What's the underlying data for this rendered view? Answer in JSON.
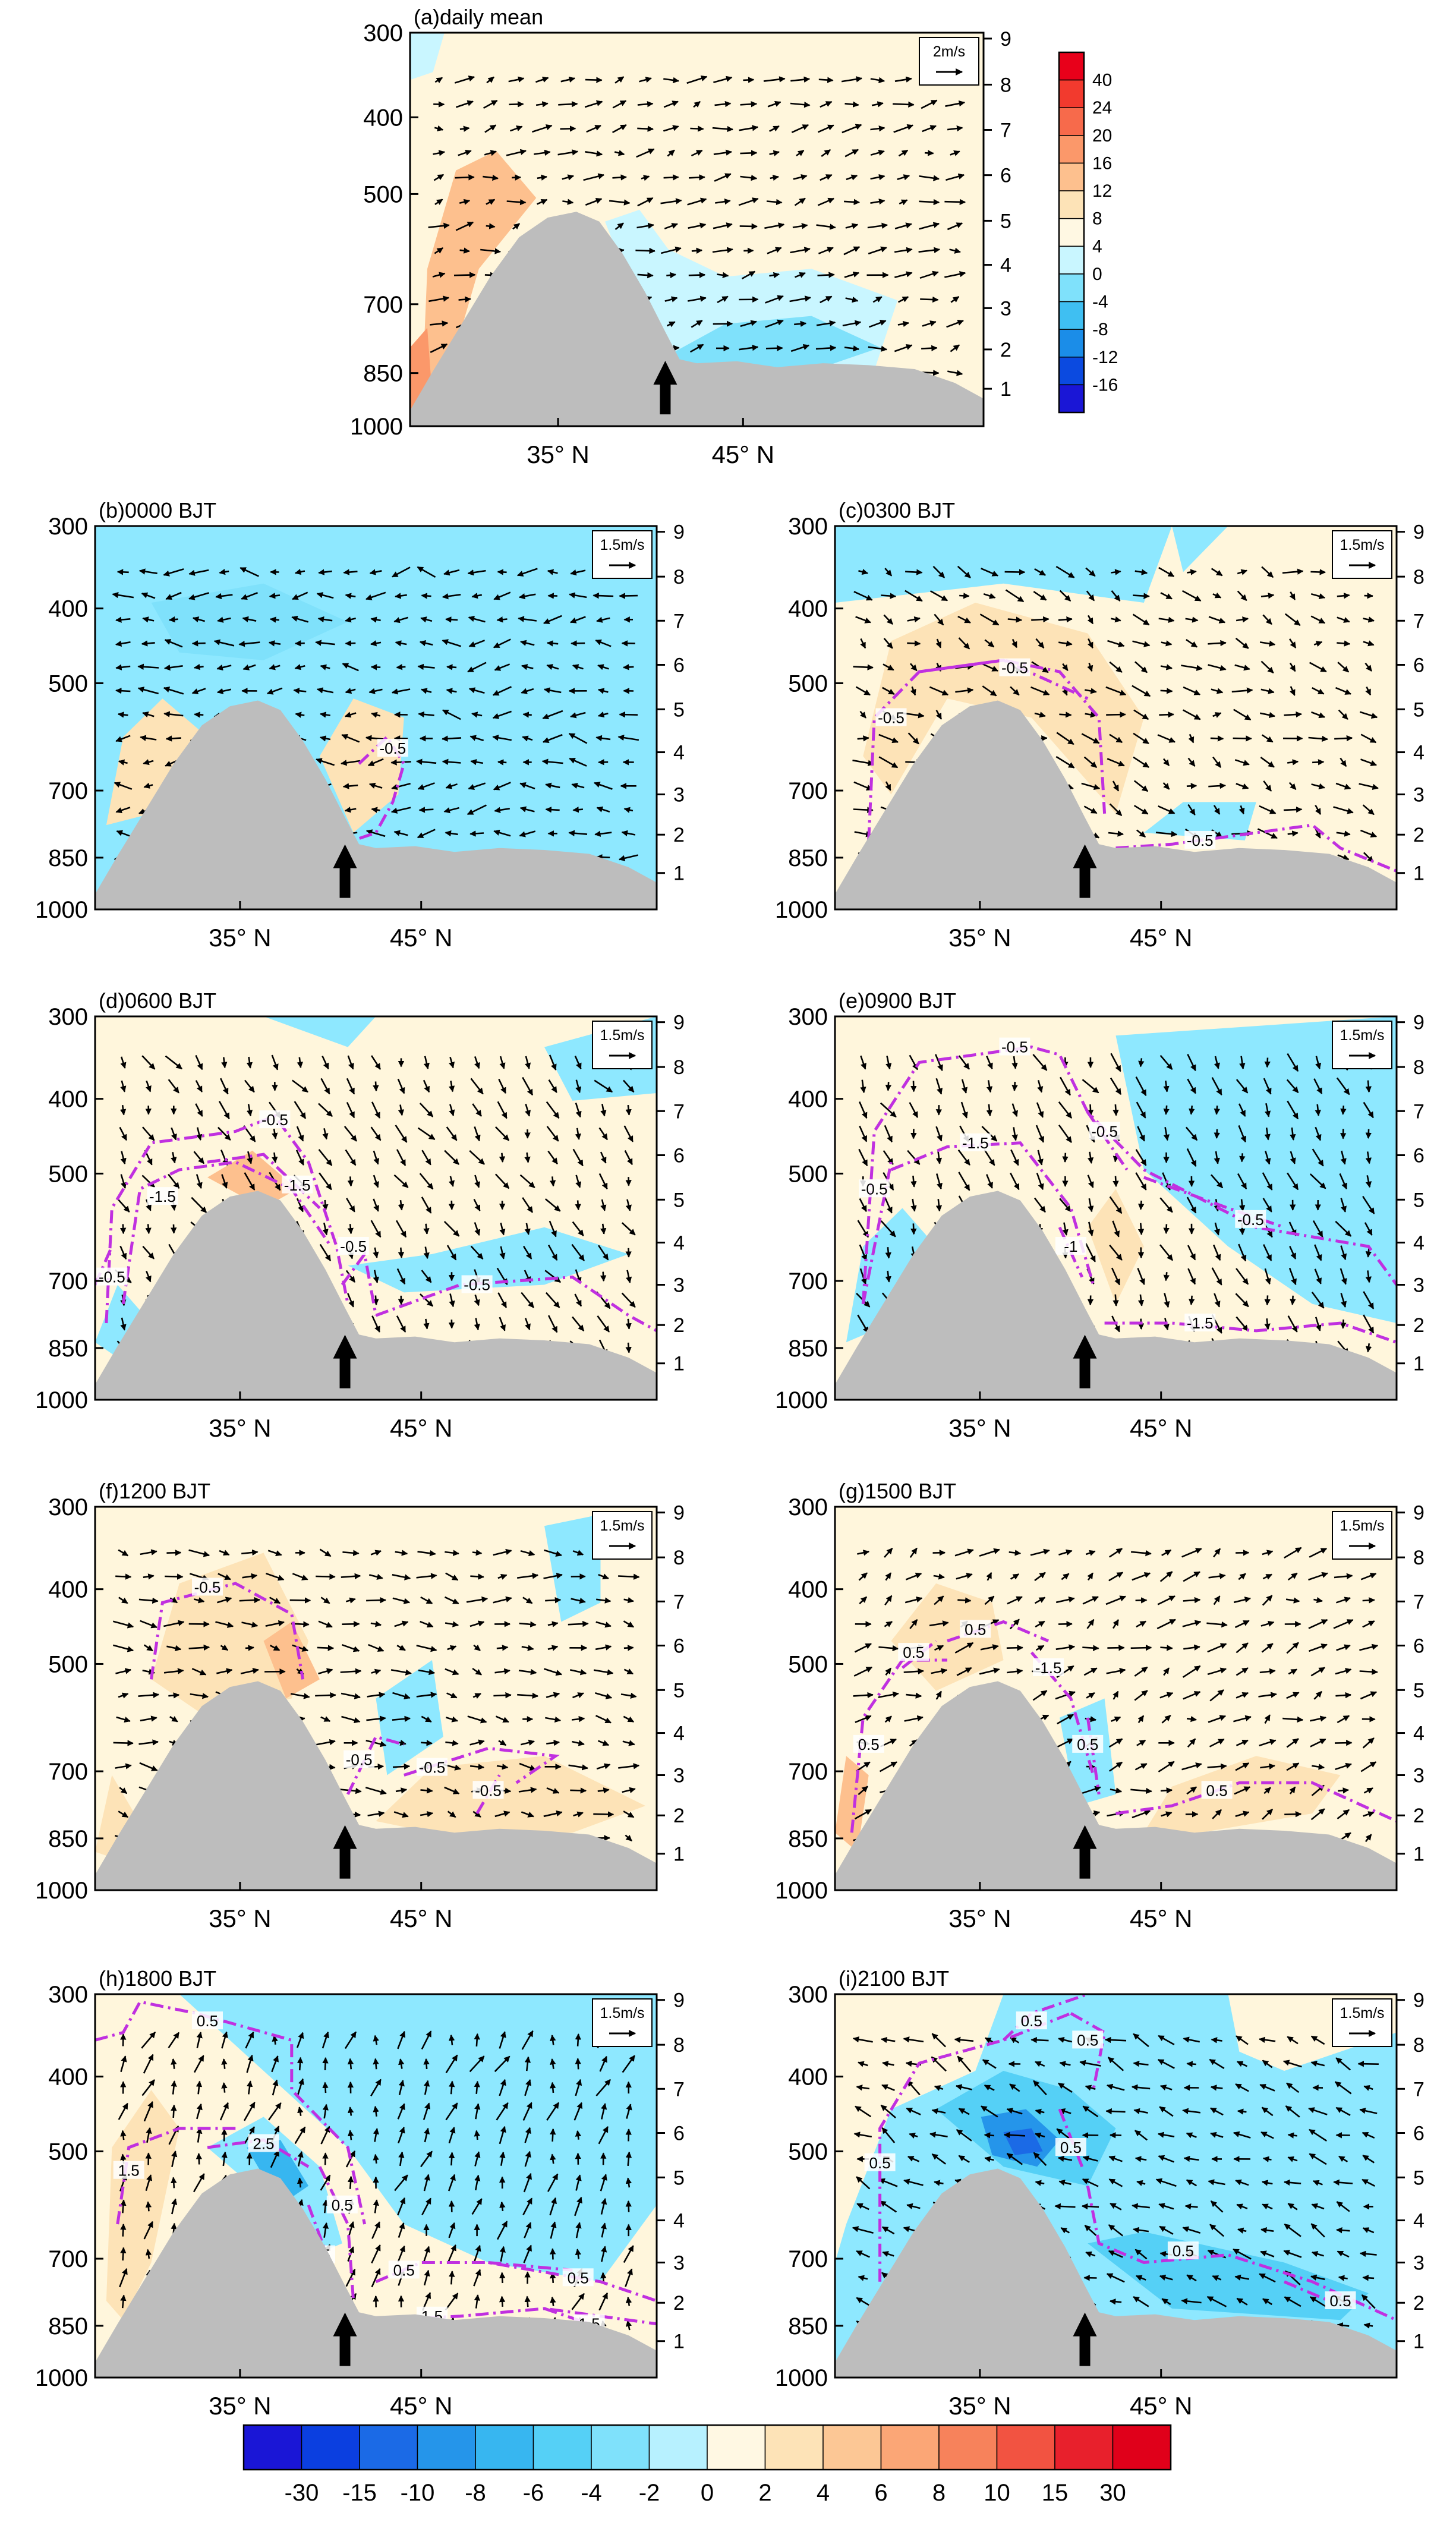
{
  "chart_data": {
    "type": "heatmap",
    "description_units": {
      "vertical_axis_left": "hPa",
      "vertical_axis_right": "km",
      "horizontal_axis": "latitude"
    },
    "shared_axes": {
      "y_left_ticks": [
        "300",
        "400",
        "500",
        "700",
        "850",
        "1000"
      ],
      "y_left_values": [
        300,
        400,
        500,
        700,
        850,
        1000
      ],
      "y_right_ticks": [
        "1",
        "2",
        "3",
        "4",
        "5",
        "6",
        "7",
        "8",
        "9"
      ],
      "x_ticks": [
        "35° N",
        "45° N"
      ],
      "x_tick_values": [
        35,
        45
      ],
      "xlim": [
        27,
        58
      ]
    },
    "colors": {
      "terrain": "#bdbdbd",
      "contour": "#c030e0",
      "arrow": "#000000",
      "neg_fill": "#8ee8ff",
      "pos_fill": "#fff6dc"
    },
    "panels": [
      {
        "id": "a",
        "label": "(a)daily mean",
        "scale_label": "2m/s",
        "background": "pos",
        "contours": []
      },
      {
        "id": "b",
        "label": "(b)0000 BJT",
        "scale_label": "1.5m/s",
        "background": "neg",
        "contours": [
          "-0.5"
        ]
      },
      {
        "id": "c",
        "label": "(c)0300 BJT",
        "scale_label": "1.5m/s",
        "background": "pos",
        "contours": [
          "-0.5",
          "-0.5",
          "-0.5"
        ]
      },
      {
        "id": "d",
        "label": "(d)0600 BJT",
        "scale_label": "1.5m/s",
        "background": "pos",
        "contours": [
          "-0.5",
          "-1.5",
          "-1.5",
          "-0.5",
          "-0.5",
          "-0.5"
        ]
      },
      {
        "id": "e",
        "label": "(e)0900 BJT",
        "scale_label": "1.5m/s",
        "background": "pos",
        "contours": [
          "-0.5",
          "-0.5",
          "-1.5",
          "-0.5",
          "-0.5",
          "-1.5",
          "-1"
        ]
      },
      {
        "id": "f",
        "label": "(f)1200 BJT",
        "scale_label": "1.5m/s",
        "background": "pos",
        "contours": [
          "-0.5",
          "-0.5",
          "-0.5",
          "-0.5"
        ]
      },
      {
        "id": "g",
        "label": "(g)1500 BJT",
        "scale_label": "1.5m/s",
        "background": "pos",
        "contours": [
          "0.5",
          "0.5",
          "0.5",
          "-1.5",
          "0.5",
          "0.5"
        ]
      },
      {
        "id": "h",
        "label": "(h)1800 BJT",
        "scale_label": "1.5m/s",
        "background": "pos",
        "contours": [
          "0.5",
          "1.5",
          "2.5",
          "0.5",
          "0.5",
          "1.5",
          "0.5",
          "1.5",
          "1.5"
        ]
      },
      {
        "id": "i",
        "label": "(i)2100 BJT",
        "scale_label": "1.5m/s",
        "background": "neg",
        "contours": [
          "0.5",
          "0.5",
          "0.5",
          "0.5",
          "0.5",
          "0.5"
        ]
      }
    ],
    "colorbar_panel_a": {
      "labels": [
        "40",
        "24",
        "20",
        "16",
        "12",
        "8",
        "4",
        "0",
        "-4",
        "-8",
        "-12",
        "-16"
      ],
      "colors": [
        "#e8001a",
        "#f23a2e",
        "#f76a4b",
        "#fb986a",
        "#fdc08e",
        "#fde3b7",
        "#fff8e3",
        "#c9f6ff",
        "#7fe1fb",
        "#3fbff2",
        "#1b8de8",
        "#0b4ae0",
        "#1a16d6"
      ]
    },
    "colorbar_bottom": {
      "labels": [
        "-30",
        "-15",
        "-10",
        "-8",
        "-6",
        "-4",
        "-2",
        "0",
        "2",
        "4",
        "6",
        "8",
        "10",
        "15",
        "30"
      ],
      "colors": [
        "#1a16d6",
        "#0b3fe0",
        "#1b6ae6",
        "#2595ea",
        "#37b6f0",
        "#55d0f6",
        "#7fe1fb",
        "#b7f1ff",
        "#fff8e3",
        "#fde3b7",
        "#fcc795",
        "#fba676",
        "#f7825b",
        "#f25341",
        "#e8202c",
        "#e0001a"
      ]
    }
  }
}
